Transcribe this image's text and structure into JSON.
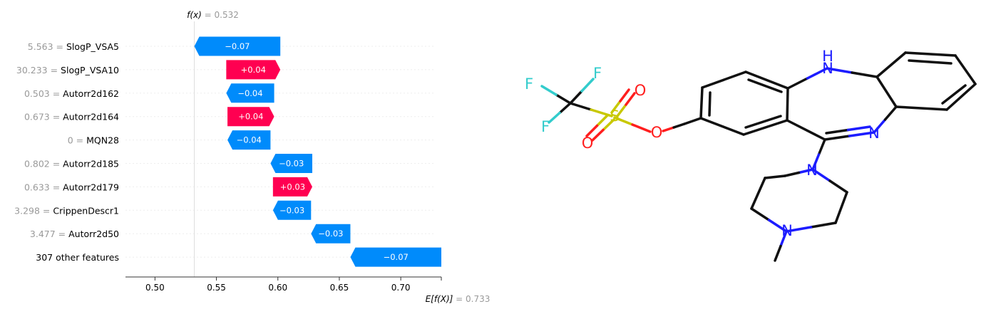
{
  "chart_data": {
    "type": "bar",
    "subtype": "shap-waterfall",
    "fx": {
      "label": "f(x)",
      "value": "0.532",
      "number": 0.532
    },
    "expected": {
      "label": "E[f(X)]",
      "value": "0.733",
      "number": 0.733
    },
    "xlim": [
      0.476,
      0.733
    ],
    "xticks": [
      {
        "value": 0.5,
        "label": "0.50"
      },
      {
        "value": 0.55,
        "label": "0.55"
      },
      {
        "value": 0.6,
        "label": "0.60"
      },
      {
        "value": 0.65,
        "label": "0.65"
      },
      {
        "value": 0.7,
        "label": "0.70"
      }
    ],
    "colors": {
      "positive": "#ff0051",
      "negative": "#008bfb"
    },
    "features": [
      {
        "value": "5.563",
        "name": "SlogP_VSA5",
        "start": 0.602,
        "end": 0.532,
        "label": "−0.07",
        "sign": "neg"
      },
      {
        "value": "30.233",
        "name": "SlogP_VSA10",
        "start": 0.558,
        "end": 0.602,
        "label": "+0.04",
        "sign": "pos"
      },
      {
        "value": "0.503",
        "name": "Autorr2d162",
        "start": 0.597,
        "end": 0.558,
        "label": "−0.04",
        "sign": "neg"
      },
      {
        "value": "0.673",
        "name": "Autorr2d164",
        "start": 0.559,
        "end": 0.597,
        "label": "+0.04",
        "sign": "pos"
      },
      {
        "value": "0",
        "name": "MQN28",
        "start": 0.594,
        "end": 0.559,
        "label": "−0.04",
        "sign": "neg"
      },
      {
        "value": "0.802",
        "name": "Autorr2d185",
        "start": 0.628,
        "end": 0.594,
        "label": "−0.03",
        "sign": "neg"
      },
      {
        "value": "0.633",
        "name": "Autorr2d179",
        "start": 0.596,
        "end": 0.628,
        "label": "+0.03",
        "sign": "pos"
      },
      {
        "value": "3.298",
        "name": "CrippenDescr1",
        "start": 0.627,
        "end": 0.596,
        "label": "−0.03",
        "sign": "neg"
      },
      {
        "value": "3.477",
        "name": "Autorr2d50",
        "start": 0.659,
        "end": 0.627,
        "label": "−0.03",
        "sign": "neg"
      },
      {
        "value": "",
        "name": "307 other features",
        "start": 0.733,
        "end": 0.659,
        "label": "−0.07",
        "sign": "neg"
      }
    ]
  },
  "molecule": {
    "atom_labels": [
      "F",
      "F",
      "F",
      "S",
      "O",
      "O",
      "O",
      "N",
      "N",
      "N",
      "N"
    ],
    "nh_label": "H",
    "colors": {
      "bond": "#111111",
      "N": "#1c1cff",
      "O": "#ff1e1e",
      "S": "#c8c800",
      "F": "#33cccc"
    }
  }
}
